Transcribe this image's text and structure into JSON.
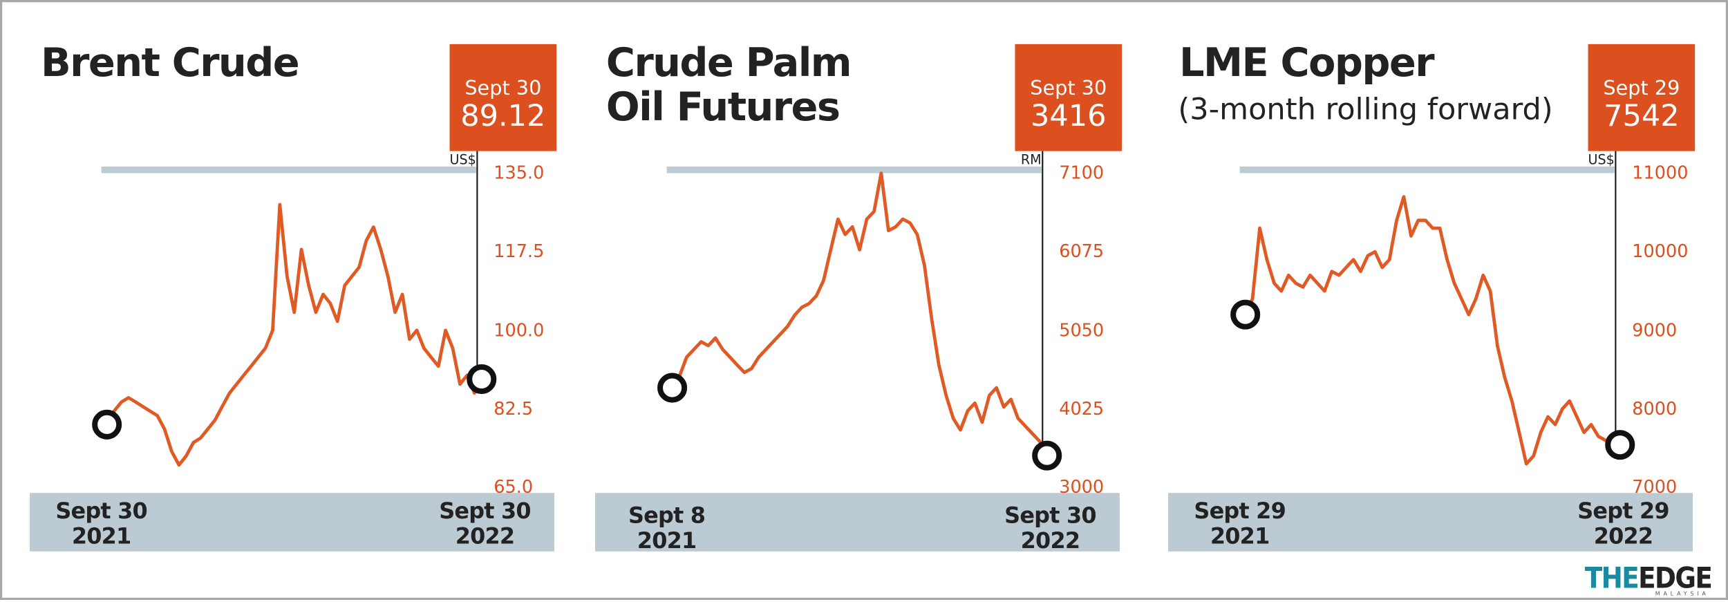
{
  "chart_data": [
    {
      "type": "line",
      "title": "Brent Crude",
      "unit": "US$",
      "callout_date": "Sept 30",
      "categories": [
        "Sept 30\n2021",
        null,
        null,
        null,
        null,
        null,
        null,
        null,
        null,
        null,
        null,
        null,
        null,
        null,
        null,
        null,
        null,
        null,
        null,
        null,
        null,
        null,
        null,
        null,
        null,
        null,
        null,
        null,
        null,
        null,
        null,
        null,
        null,
        null,
        null,
        null,
        null,
        null,
        null,
        null,
        null,
        null,
        null,
        null,
        null,
        null,
        null,
        null,
        null,
        null,
        null,
        null,
        "Sept 30\n2022"
      ],
      "series": [
        {
          "name": "Brent Crude",
          "color": "#e05a25",
          "values": [
            79,
            82,
            84,
            85,
            84,
            83,
            82,
            81,
            78,
            73,
            70,
            72,
            75,
            76,
            78,
            80,
            83,
            86,
            88,
            90,
            92,
            94,
            96,
            100,
            128,
            112,
            104,
            118,
            110,
            104,
            108,
            106,
            102,
            110,
            112,
            114,
            120,
            123,
            118,
            112,
            104,
            108,
            98,
            100,
            96,
            94,
            92,
            100,
            96,
            88,
            90,
            86,
            89.12
          ]
        }
      ],
      "ylim": [
        65,
        135
      ],
      "yticks": [
        {
          "value": 135,
          "label": "135.0"
        },
        {
          "value": 117.5,
          "label": "117.5"
        },
        {
          "value": 100,
          "label": "100.0"
        },
        {
          "value": 82.5,
          "label": "82.5"
        },
        {
          "value": 65,
          "label": "65.0"
        }
      ]
    },
    {
      "type": "line",
      "title": "Crude Palm\nOil Futures",
      "unit": "RM",
      "callout_date": "Sept 30",
      "categories": [
        "Sept 8\n2021",
        null,
        null,
        null,
        null,
        null,
        null,
        null,
        null,
        null,
        null,
        null,
        null,
        null,
        null,
        null,
        null,
        null,
        null,
        null,
        null,
        null,
        null,
        null,
        null,
        null,
        null,
        null,
        null,
        null,
        null,
        null,
        null,
        null,
        null,
        null,
        null,
        null,
        null,
        null,
        null,
        null,
        null,
        null,
        null,
        null,
        null,
        null,
        null,
        null,
        null,
        null,
        "Sept 30\n2022"
      ],
      "series": [
        {
          "name": "Crude Palm Oil Futures",
          "color": "#e05a25",
          "values": [
            4300,
            4450,
            4700,
            4800,
            4900,
            4850,
            4950,
            4800,
            4700,
            4600,
            4500,
            4550,
            4700,
            4800,
            4900,
            5000,
            5100,
            5250,
            5350,
            5400,
            5500,
            5700,
            6100,
            6500,
            6300,
            6400,
            6100,
            6500,
            6600,
            7100,
            6350,
            6400,
            6500,
            6450,
            6300,
            5900,
            5200,
            4600,
            4200,
            3900,
            3750,
            4000,
            4100,
            3850,
            4200,
            4300,
            4050,
            4150,
            3900,
            3800,
            3700,
            3600,
            3416
          ]
        }
      ],
      "ylim": [
        3000,
        7100
      ],
      "yticks": [
        7100,
        6075,
        5050,
        4025,
        3000
      ]
    },
    {
      "type": "line",
      "title": "LME Copper",
      "subtitle": "(3-month rolling forward)",
      "unit": "US$",
      "callout_date": "Sept 29",
      "categories": [
        "Sept 29\n2021",
        null,
        null,
        null,
        null,
        null,
        null,
        null,
        null,
        null,
        null,
        null,
        null,
        null,
        null,
        null,
        null,
        null,
        null,
        null,
        null,
        null,
        null,
        null,
        null,
        null,
        null,
        null,
        null,
        null,
        null,
        null,
        null,
        null,
        null,
        null,
        null,
        null,
        null,
        null,
        null,
        null,
        null,
        null,
        null,
        null,
        null,
        null,
        null,
        null,
        null,
        null,
        "Sept 29\n2022"
      ],
      "series": [
        {
          "name": "LME Copper",
          "color": "#e05a25",
          "values": [
            9200,
            9400,
            10300,
            9900,
            9600,
            9500,
            9700,
            9600,
            9550,
            9700,
            9600,
            9500,
            9750,
            9700,
            9800,
            9900,
            9750,
            9950,
            10000,
            9800,
            9900,
            10400,
            10700,
            10200,
            10400,
            10400,
            10300,
            10300,
            9900,
            9600,
            9400,
            9200,
            9400,
            9700,
            9500,
            8800,
            8400,
            8100,
            7700,
            7300,
            7400,
            7700,
            7900,
            7800,
            8000,
            8100,
            7900,
            7700,
            7800,
            7650,
            7600,
            7580,
            7542
          ]
        }
      ],
      "ylim": [
        7000,
        11000
      ],
      "yticks": [
        11000,
        10000,
        9000,
        8000,
        7000
      ]
    }
  ],
  "footer": {
    "logo_a": "THE",
    "logo_b": "EDGE",
    "sub": "MALAYSIA"
  }
}
